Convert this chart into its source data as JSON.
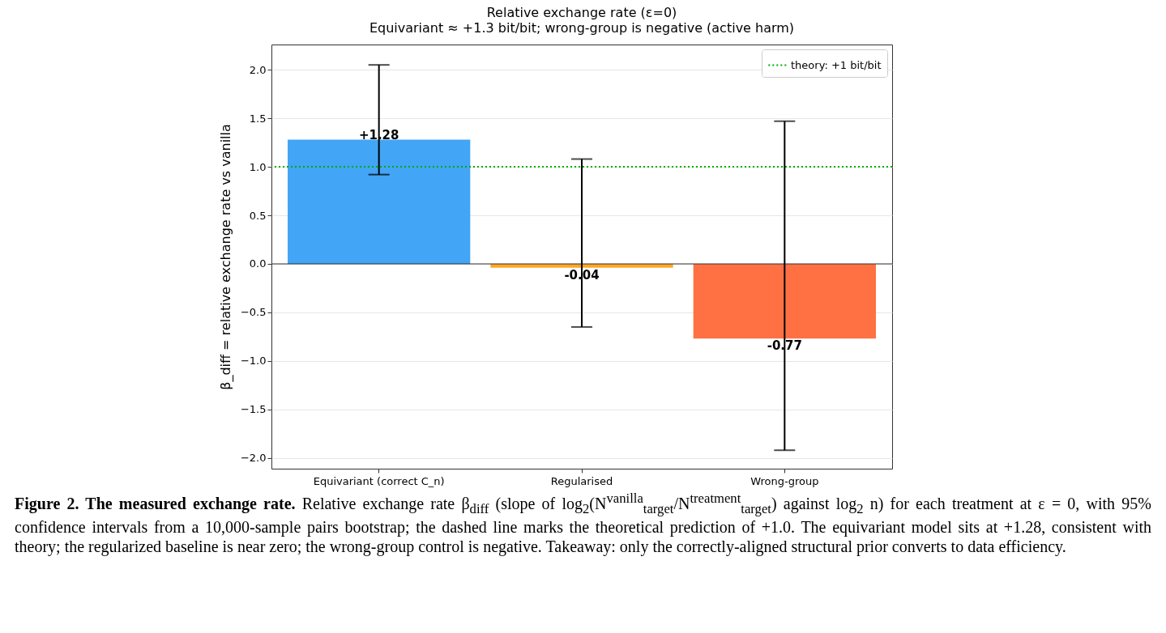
{
  "chart_data": {
    "type": "bar",
    "title": "Relative exchange rate (ε=0)",
    "subtitle": "Equivariant ≈ +1.3 bit/bit; wrong-group is negative (active harm)",
    "ylabel": "β_diff = relative exchange rate vs vanilla",
    "categories": [
      "Equivariant (correct C_n)",
      "Regularised",
      "Wrong-group"
    ],
    "values": [
      1.28,
      -0.04,
      -0.77
    ],
    "colors": [
      "#42a5f5",
      "#ffa726",
      "#ff7043"
    ],
    "errors": [
      [
        0.92,
        2.05
      ],
      [
        -0.65,
        1.08
      ],
      [
        -1.92,
        1.47
      ]
    ],
    "value_labels": [
      "+1.28",
      "-0.04",
      "-0.77"
    ],
    "ylim": [
      -2.11,
      2.26
    ],
    "yticks": [
      {
        "value": -2,
        "label": "−2.0"
      },
      {
        "value": -1.5,
        "label": "−1.5"
      },
      {
        "value": -1,
        "label": "−1.0"
      },
      {
        "value": -0.5,
        "label": "−0.5"
      },
      {
        "value": 0,
        "label": "0.0"
      },
      {
        "value": 0.5,
        "label": "0.5"
      },
      {
        "value": 1,
        "label": "1.0"
      },
      {
        "value": 1.5,
        "label": "1.5"
      },
      {
        "value": 2,
        "label": "2.0"
      }
    ],
    "ref_lines": [
      {
        "axis": "y",
        "value": 0,
        "color": "#333333",
        "line_style": "solid"
      },
      {
        "axis": "y",
        "value": 1,
        "label": "theory: +1 bit/bit",
        "color": "#00aa00",
        "line_style": "dotted"
      }
    ],
    "grid": "y",
    "legend": "top right",
    "annotations": [
      "Figure 2. The measured exchange rate.",
      "Relative exchange rate β$_{diff}$ (slope of log$_{2}$(N$^{vanilla}$$_{target}$/N$^{treatment}$$_{target}$) against log$_{2}$ n) for each treatment at ε = 0, with 95% confidence intervals from a 10,000-sample pairs bootstrap; the dashed line marks the theoretical prediction of +1.0. The equivariant model sits at +1.28, consistent with theory; the regularized baseline is near zero; the wrong-group control is negative. Takeaway: only the correctly-aligned structural prior converts to data efficiency."
    ]
  }
}
